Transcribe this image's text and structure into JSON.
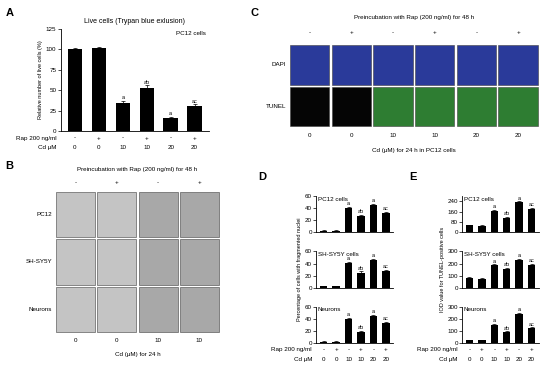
{
  "chart_data": [
    {
      "type": "bar",
      "title": "Live cells (Trypan blue exlusion)",
      "subtitle": "PC12 cells",
      "y_label": "Relative number of live cells (%)",
      "categories": [
        null,
        null,
        null,
        null,
        null,
        null
      ],
      "values": [
        100,
        101,
        35,
        53,
        16,
        31
      ],
      "errors": [
        2,
        2,
        2,
        3,
        2,
        2
      ],
      "annotations": [
        null,
        null,
        "a",
        "ab",
        "a",
        "ac"
      ],
      "x_rows": [
        {
          "label": "Rap 200 ng/ml",
          "values": [
            "-",
            "+",
            "-",
            "+",
            "-",
            "+"
          ]
        },
        {
          "label": "Cd μM",
          "values": [
            0,
            0,
            10,
            10,
            20,
            20
          ]
        }
      ],
      "color": "#000000",
      "ylim": [
        0,
        125
      ],
      "yticks": [
        0,
        25,
        50,
        75,
        100,
        125
      ]
    },
    {
      "type": "bar",
      "subtitle": "PC12 cells",
      "categories": [
        null,
        null,
        null,
        null,
        null,
        null
      ],
      "values": [
        3,
        3,
        40,
        27,
        45,
        32
      ],
      "errors": [
        0.5,
        0.5,
        2,
        2,
        2,
        2
      ],
      "annotations": [
        null,
        null,
        "a",
        "ab",
        "a",
        "ac"
      ],
      "color": "#000000",
      "ylim": [
        0,
        60
      ],
      "yticks": [
        0,
        20,
        40,
        60
      ]
    },
    {
      "type": "bar",
      "subtitle": "SH-SY5Y cells",
      "y_label": "Percentage of cells with fragmented nuclei",
      "categories": [
        null,
        null,
        null,
        null,
        null,
        null
      ],
      "values": [
        3,
        3,
        41,
        25,
        46,
        28
      ],
      "errors": [
        0.5,
        0.5,
        2,
        2,
        2,
        2
      ],
      "annotations": [
        null,
        null,
        "a",
        "ab",
        "a",
        "ac"
      ],
      "color": "#000000",
      "ylim": [
        0,
        60
      ],
      "yticks": [
        0,
        20,
        40,
        60
      ]
    },
    {
      "type": "bar",
      "subtitle": "Neurons",
      "categories": [
        null,
        null,
        null,
        null,
        null,
        null
      ],
      "values": [
        2,
        2,
        40,
        18,
        45,
        33
      ],
      "errors": [
        0.5,
        0.5,
        2,
        2,
        2,
        2
      ],
      "annotations": [
        null,
        null,
        "a",
        "ab",
        "a",
        "ac"
      ],
      "x_rows": [
        {
          "label": "Rap 200 ng/ml",
          "values": [
            "-",
            "+",
            "-",
            "+",
            "-",
            "+"
          ]
        },
        {
          "label": "Cd μM",
          "values": [
            0,
            0,
            10,
            10,
            20,
            20
          ]
        }
      ],
      "color": "#000000",
      "ylim": [
        0,
        60
      ],
      "yticks": [
        0,
        20,
        40,
        60
      ]
    },
    {
      "type": "bar",
      "subtitle": "PC12 cells",
      "categories": [
        null,
        null,
        null,
        null,
        null,
        null
      ],
      "values": [
        55,
        50,
        165,
        110,
        232,
        180
      ],
      "errors": [
        4,
        4,
        8,
        8,
        8,
        8
      ],
      "annotations": [
        null,
        null,
        "a",
        "ab",
        "a",
        "ac"
      ],
      "color": "#000000",
      "ylim": [
        0,
        280
      ],
      "yticks": [
        0,
        80,
        160,
        240
      ]
    },
    {
      "type": "bar",
      "subtitle": "SH-SY5Y cells",
      "y_label": "IOD value for TUNEL-positive cells",
      "categories": [
        null,
        null,
        null,
        null,
        null,
        null
      ],
      "values": [
        80,
        75,
        185,
        155,
        230,
        190
      ],
      "errors": [
        5,
        5,
        8,
        8,
        8,
        8
      ],
      "annotations": [
        null,
        null,
        "a",
        "ab",
        "a",
        "ac"
      ],
      "color": "#000000",
      "ylim": [
        0,
        300
      ],
      "yticks": [
        0,
        100,
        200,
        300
      ]
    },
    {
      "type": "bar",
      "subtitle": "Neurons",
      "categories": [
        null,
        null,
        null,
        null,
        null,
        null
      ],
      "values": [
        25,
        22,
        150,
        90,
        240,
        120
      ],
      "errors": [
        3,
        3,
        8,
        6,
        8,
        8
      ],
      "annotations": [
        null,
        null,
        "a",
        "ab",
        "a",
        "ac"
      ],
      "x_rows": [
        {
          "label": "Rap 200 ng/ml",
          "values": [
            "-",
            "+",
            "-",
            "+",
            "-",
            "+"
          ]
        },
        {
          "label": "Cd μM",
          "values": [
            0,
            0,
            10,
            10,
            20,
            20
          ]
        }
      ],
      "color": "#000000",
      "ylim": [
        0,
        300
      ],
      "yticks": [
        0,
        100,
        200,
        300
      ]
    }
  ],
  "image_panels": [
    {
      "header": "Preincubation with Rap (200 ng/ml) for 48 h",
      "signs": [
        "-",
        "+",
        "-",
        "+"
      ],
      "row_labels": [
        "PC12",
        "SH-SY5Y",
        "Neurons"
      ],
      "doses": [
        0,
        0,
        10,
        10
      ],
      "footer": "Cd (μM) for 24 h"
    },
    {
      "header": "Preincubation with Rap (200 ng/ml) for 48 h",
      "signs": [
        "-",
        "+",
        "-",
        "+",
        "-",
        "+"
      ],
      "row_labels": [
        "DAPI",
        "TUNEL"
      ],
      "doses": [
        0,
        0,
        10,
        10,
        20,
        20
      ],
      "footer": "Cd (μM) for 24 h in PC12 cells"
    }
  ],
  "panel_letters": [
    "A",
    "B",
    "C",
    "D",
    "E"
  ]
}
